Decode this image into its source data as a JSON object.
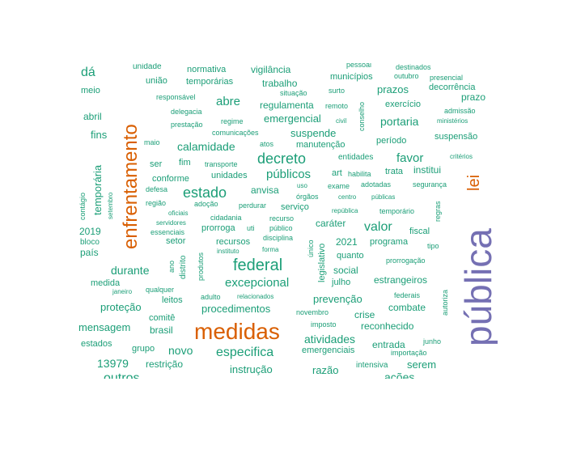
{
  "colors": {
    "small": "#1b9e77",
    "medium": "#d95f02",
    "large": "#7570b3"
  },
  "words": [
    {
      "text": "pública",
      "tier": "large"
    },
    {
      "text": "medidas",
      "tier": "medium"
    },
    {
      "text": "enfrentamento",
      "tier": "medium"
    },
    {
      "text": "lei",
      "tier": "medium"
    },
    {
      "text": "federal",
      "tier": "small"
    },
    {
      "text": "decreto",
      "tier": "small"
    },
    {
      "text": "estado",
      "tier": "small"
    },
    {
      "text": "excepcional",
      "tier": "small"
    },
    {
      "text": "especifica",
      "tier": "small"
    },
    {
      "text": "valor",
      "tier": "small"
    },
    {
      "text": "favor",
      "tier": "small"
    },
    {
      "text": "públicos",
      "tier": "small"
    },
    {
      "text": "calamidade",
      "tier": "small"
    },
    {
      "text": "abre",
      "tier": "small"
    },
    {
      "text": "portaria",
      "tier": "small"
    },
    {
      "text": "emergencial",
      "tier": "small"
    },
    {
      "text": "durante",
      "tier": "small"
    },
    {
      "text": "outros",
      "tier": "small"
    },
    {
      "text": "dá",
      "tier": "small"
    },
    {
      "text": "novo",
      "tier": "small"
    },
    {
      "text": "atividades",
      "tier": "small"
    },
    {
      "text": "prevenção",
      "tier": "small"
    },
    {
      "text": "procedimentos",
      "tier": "small"
    },
    {
      "text": "mensagem",
      "tier": "small"
    },
    {
      "text": "instrução",
      "tier": "small"
    },
    {
      "text": "suspende",
      "tier": "small"
    },
    {
      "text": "vigilância",
      "tier": "small"
    },
    {
      "text": "trabalho",
      "tier": "small"
    },
    {
      "text": "prazos",
      "tier": "small"
    },
    {
      "text": "regulamenta",
      "tier": "small"
    },
    {
      "text": "temporária",
      "tier": "small"
    },
    {
      "text": "fins",
      "tier": "small"
    },
    {
      "text": "abril",
      "tier": "small"
    },
    {
      "text": "meio",
      "tier": "small"
    },
    {
      "text": "união",
      "tier": "small"
    },
    {
      "text": "temporárias",
      "tier": "small"
    },
    {
      "text": "normativa",
      "tier": "small"
    },
    {
      "text": "unidade",
      "tier": "small"
    },
    {
      "text": "municípios",
      "tier": "small"
    },
    {
      "text": "pessoal",
      "tier": "small"
    },
    {
      "text": "destinados",
      "tier": "small"
    },
    {
      "text": "outubro",
      "tier": "small"
    },
    {
      "text": "presencial",
      "tier": "small"
    },
    {
      "text": "decorrência",
      "tier": "small"
    },
    {
      "text": "prazo",
      "tier": "small"
    },
    {
      "text": "responsável",
      "tier": "small"
    },
    {
      "text": "situação",
      "tier": "small"
    },
    {
      "text": "surto",
      "tier": "small"
    },
    {
      "text": "remoto",
      "tier": "small"
    },
    {
      "text": "conselho",
      "tier": "small"
    },
    {
      "text": "exercício",
      "tier": "small"
    },
    {
      "text": "admissão",
      "tier": "small"
    },
    {
      "text": "ministérios",
      "tier": "small"
    },
    {
      "text": "delegacia",
      "tier": "small"
    },
    {
      "text": "regime",
      "tier": "small"
    },
    {
      "text": "civil",
      "tier": "small"
    },
    {
      "text": "prestação",
      "tier": "small"
    },
    {
      "text": "comunicações",
      "tier": "small"
    },
    {
      "text": "período",
      "tier": "small"
    },
    {
      "text": "suspensão",
      "tier": "small"
    },
    {
      "text": "maio",
      "tier": "small"
    },
    {
      "text": "atos",
      "tier": "small"
    },
    {
      "text": "manutenção",
      "tier": "small"
    },
    {
      "text": "entidades",
      "tier": "small"
    },
    {
      "text": "critérios",
      "tier": "small"
    },
    {
      "text": "ser",
      "tier": "small"
    },
    {
      "text": "fim",
      "tier": "small"
    },
    {
      "text": "transporte",
      "tier": "small"
    },
    {
      "text": "art",
      "tier": "small"
    },
    {
      "text": "habilita",
      "tier": "small"
    },
    {
      "text": "trata",
      "tier": "small"
    },
    {
      "text": "institui",
      "tier": "small"
    },
    {
      "text": "conforme",
      "tier": "small"
    },
    {
      "text": "unidades",
      "tier": "small"
    },
    {
      "text": "uso",
      "tier": "small"
    },
    {
      "text": "exame",
      "tier": "small"
    },
    {
      "text": "adotadas",
      "tier": "small"
    },
    {
      "text": "segurança",
      "tier": "small"
    },
    {
      "text": "defesa",
      "tier": "small"
    },
    {
      "text": "anvisa",
      "tier": "small"
    },
    {
      "text": "órgãos",
      "tier": "small"
    },
    {
      "text": "centro",
      "tier": "small"
    },
    {
      "text": "públicas",
      "tier": "small"
    },
    {
      "text": "regras",
      "tier": "small"
    },
    {
      "text": "contágio",
      "tier": "small"
    },
    {
      "text": "setembro",
      "tier": "small"
    },
    {
      "text": "região",
      "tier": "small"
    },
    {
      "text": "adoção",
      "tier": "small"
    },
    {
      "text": "perdurar",
      "tier": "small"
    },
    {
      "text": "serviço",
      "tier": "small"
    },
    {
      "text": "república",
      "tier": "small"
    },
    {
      "text": "temporário",
      "tier": "small"
    },
    {
      "text": "oficiais",
      "tier": "small"
    },
    {
      "text": "cidadania",
      "tier": "small"
    },
    {
      "text": "recurso",
      "tier": "small"
    },
    {
      "text": "caráter",
      "tier": "small"
    },
    {
      "text": "servidores",
      "tier": "small"
    },
    {
      "text": "prorroga",
      "tier": "small"
    },
    {
      "text": "uti",
      "tier": "small"
    },
    {
      "text": "público",
      "tier": "small"
    },
    {
      "text": "essenciais",
      "tier": "small"
    },
    {
      "text": "fiscal",
      "tier": "small"
    },
    {
      "text": "2019",
      "tier": "small"
    },
    {
      "text": "bloco",
      "tier": "small"
    },
    {
      "text": "setor",
      "tier": "small"
    },
    {
      "text": "recursos",
      "tier": "small"
    },
    {
      "text": "disciplina",
      "tier": "small"
    },
    {
      "text": "2021",
      "tier": "small"
    },
    {
      "text": "programa",
      "tier": "small"
    },
    {
      "text": "tipo",
      "tier": "small"
    },
    {
      "text": "país",
      "tier": "small"
    },
    {
      "text": "produtos",
      "tier": "small"
    },
    {
      "text": "instituto",
      "tier": "small"
    },
    {
      "text": "forma",
      "tier": "small"
    },
    {
      "text": "único",
      "tier": "small"
    },
    {
      "text": "legislativo",
      "tier": "small"
    },
    {
      "text": "quanto",
      "tier": "small"
    },
    {
      "text": "ano",
      "tier": "small"
    },
    {
      "text": "distrito",
      "tier": "small"
    },
    {
      "text": "prorrogação",
      "tier": "small"
    },
    {
      "text": "social",
      "tier": "small"
    },
    {
      "text": "julho",
      "tier": "small"
    },
    {
      "text": "estrangeiros",
      "tier": "small"
    },
    {
      "text": "medida",
      "tier": "small"
    },
    {
      "text": "janeiro",
      "tier": "small"
    },
    {
      "text": "qualquer",
      "tier": "small"
    },
    {
      "text": "autoriza",
      "tier": "small"
    },
    {
      "text": "adulto",
      "tier": "small"
    },
    {
      "text": "relacionados",
      "tier": "small"
    },
    {
      "text": "federais",
      "tier": "small"
    },
    {
      "text": "leitos",
      "tier": "small"
    },
    {
      "text": "combate",
      "tier": "small"
    },
    {
      "text": "proteção",
      "tier": "small"
    },
    {
      "text": "novembro",
      "tier": "small"
    },
    {
      "text": "crise",
      "tier": "small"
    },
    {
      "text": "comitê",
      "tier": "small"
    },
    {
      "text": "imposto",
      "tier": "small"
    },
    {
      "text": "reconhecido",
      "tier": "small"
    },
    {
      "text": "brasil",
      "tier": "small"
    },
    {
      "text": "estados",
      "tier": "small"
    },
    {
      "text": "grupo",
      "tier": "small"
    },
    {
      "text": "emergenciais",
      "tier": "small"
    },
    {
      "text": "entrada",
      "tier": "small"
    },
    {
      "text": "junho",
      "tier": "small"
    },
    {
      "text": "importação",
      "tier": "small"
    },
    {
      "text": "13979",
      "tier": "small"
    },
    {
      "text": "restrição",
      "tier": "small"
    },
    {
      "text": "razão",
      "tier": "small"
    },
    {
      "text": "intensiva",
      "tier": "small"
    },
    {
      "text": "serem",
      "tier": "small"
    },
    {
      "text": "ações",
      "tier": "small"
    }
  ]
}
